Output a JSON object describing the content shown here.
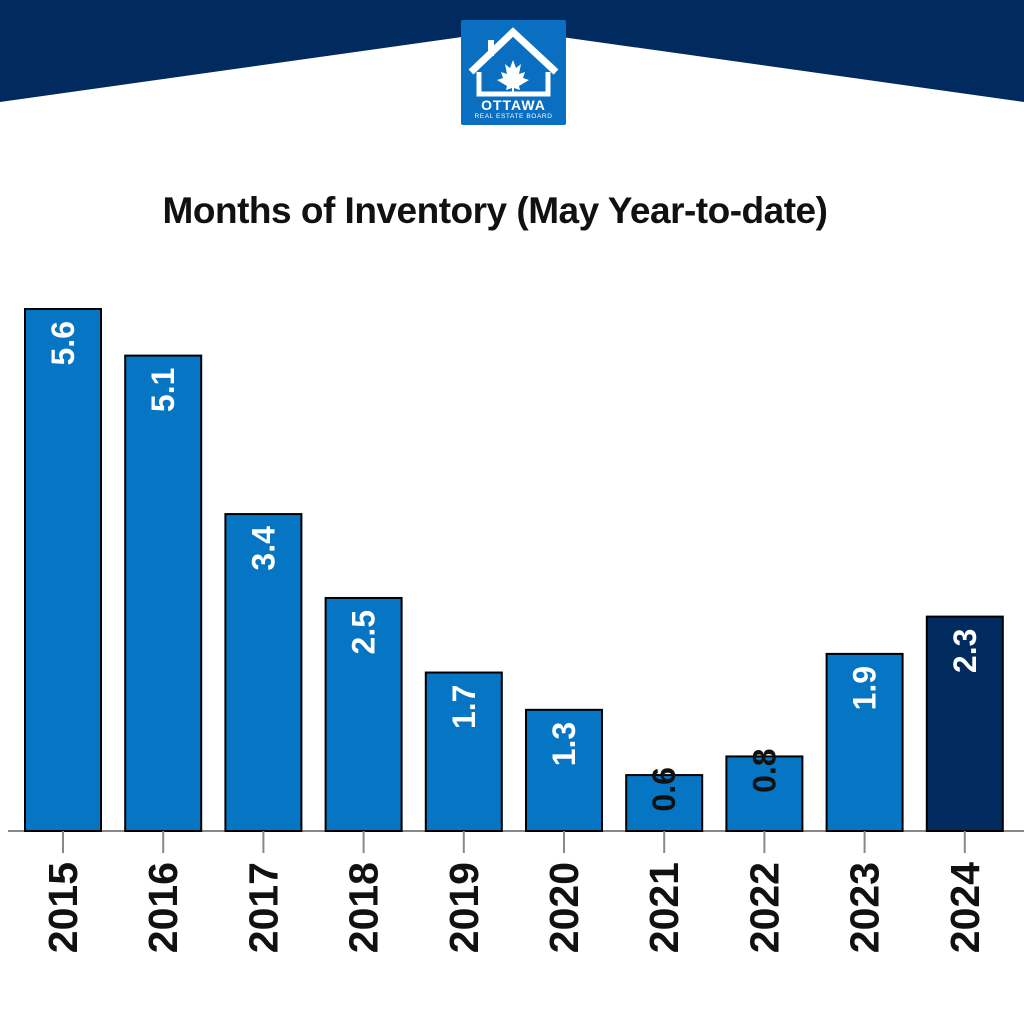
{
  "logo": {
    "name": "OTTAWA",
    "subtitle": "REAL ESTATE BOARD"
  },
  "colors": {
    "banner": "#012a5e",
    "bar": "#0575c4",
    "highlight_bar": "#012a5e",
    "axis": "#888888"
  },
  "chart_data": {
    "type": "bar",
    "title": "Months of Inventory (May Year-to-date)",
    "xlabel": "",
    "ylabel": "",
    "categories": [
      "2015",
      "2016",
      "2017",
      "2018",
      "2019",
      "2020",
      "2021",
      "2022",
      "2023",
      "2024"
    ],
    "values": [
      5.6,
      5.1,
      3.4,
      2.5,
      1.7,
      1.3,
      0.6,
      0.8,
      1.9,
      2.3
    ],
    "value_labels": [
      "5.6",
      "5.1",
      "3.4",
      "2.5",
      "1.7",
      "1.3",
      "0.6",
      "0.8",
      "1.9",
      "2.3"
    ],
    "highlight_category": "2024",
    "ylim": [
      0,
      5.6
    ],
    "grid": false,
    "legend": "none"
  }
}
